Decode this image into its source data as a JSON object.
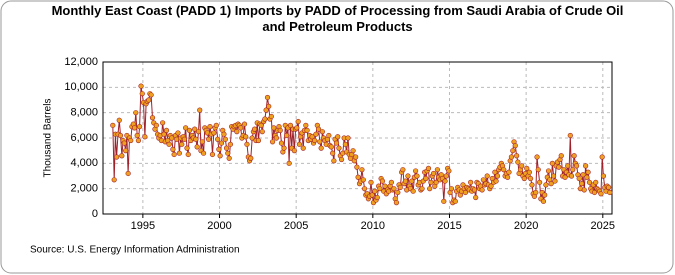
{
  "chart_data": {
    "type": "line",
    "title": "Monthly East Coast (PADD 1) Imports by PADD of Processing from Saudi Arabia of Crude Oil and Petroleum Products",
    "y_label": "Thousand Barrels",
    "source": "Source: U.S. Energy Information Administration",
    "line_color": "#a0202a",
    "marker_color": "#f0a020",
    "grid": true,
    "xlim": [
      1992.4,
      2025.6
    ],
    "xticks": [
      1995,
      2000,
      2005,
      2010,
      2015,
      2020,
      2025
    ],
    "ylim": [
      0,
      12000
    ],
    "yticks": [
      0,
      {
        "value": 2000,
        "label": "2,000"
      },
      {
        "value": 4000,
        "label": "4,000"
      },
      {
        "value": 6000,
        "label": "6,000"
      },
      {
        "value": 8000,
        "label": "8,000"
      },
      {
        "value": 10000,
        "label": "10,000"
      },
      {
        "value": 12000,
        "label": "12,000"
      }
    ],
    "x": [
      1993.04,
      1993.13,
      1993.21,
      1993.29,
      1993.38,
      1993.46,
      1993.54,
      1993.63,
      1993.71,
      1993.79,
      1993.88,
      1993.96,
      1994.04,
      1994.13,
      1994.21,
      1994.29,
      1994.38,
      1994.46,
      1994.54,
      1994.63,
      1994.71,
      1994.79,
      1994.88,
      1994.96,
      1995.04,
      1995.13,
      1995.21,
      1995.29,
      1995.38,
      1995.46,
      1995.54,
      1995.63,
      1995.71,
      1995.79,
      1995.88,
      1995.96,
      1996.04,
      1996.13,
      1996.21,
      1996.29,
      1996.38,
      1996.46,
      1996.54,
      1996.63,
      1996.71,
      1996.79,
      1996.88,
      1996.96,
      1997.04,
      1997.13,
      1997.21,
      1997.29,
      1997.38,
      1997.46,
      1997.54,
      1997.63,
      1997.71,
      1997.79,
      1997.88,
      1997.96,
      1998.04,
      1998.13,
      1998.21,
      1998.29,
      1998.38,
      1998.46,
      1998.54,
      1998.63,
      1998.71,
      1998.79,
      1998.88,
      1998.96,
      1999.04,
      1999.13,
      1999.21,
      1999.29,
      1999.38,
      1999.46,
      1999.54,
      1999.63,
      1999.71,
      1999.79,
      1999.88,
      1999.96,
      2000.04,
      2000.13,
      2000.21,
      2000.29,
      2000.38,
      2000.46,
      2000.54,
      2000.63,
      2000.71,
      2000.79,
      2000.88,
      2000.96,
      2001.04,
      2001.13,
      2001.21,
      2001.29,
      2001.38,
      2001.46,
      2001.54,
      2001.63,
      2001.71,
      2001.79,
      2001.88,
      2001.96,
      2002.04,
      2002.13,
      2002.21,
      2002.29,
      2002.38,
      2002.46,
      2002.54,
      2002.63,
      2002.71,
      2002.79,
      2002.88,
      2002.96,
      2003.04,
      2003.13,
      2003.21,
      2003.29,
      2003.38,
      2003.46,
      2003.54,
      2003.63,
      2003.71,
      2003.79,
      2003.88,
      2003.96,
      2004.04,
      2004.13,
      2004.21,
      2004.29,
      2004.38,
      2004.46,
      2004.54,
      2004.63,
      2004.71,
      2004.79,
      2004.88,
      2004.96,
      2005.04,
      2005.13,
      2005.21,
      2005.29,
      2005.38,
      2005.46,
      2005.54,
      2005.63,
      2005.71,
      2005.79,
      2005.88,
      2005.96,
      2006.04,
      2006.13,
      2006.21,
      2006.29,
      2006.38,
      2006.46,
      2006.54,
      2006.63,
      2006.71,
      2006.79,
      2006.88,
      2006.96,
      2007.04,
      2007.13,
      2007.21,
      2007.29,
      2007.38,
      2007.46,
      2007.54,
      2007.63,
      2007.71,
      2007.79,
      2007.88,
      2007.96,
      2008.04,
      2008.13,
      2008.21,
      2008.29,
      2008.38,
      2008.46,
      2008.54,
      2008.63,
      2008.71,
      2008.79,
      2008.88,
      2008.96,
      2009.04,
      2009.13,
      2009.21,
      2009.29,
      2009.38,
      2009.46,
      2009.54,
      2009.63,
      2009.71,
      2009.79,
      2009.88,
      2009.96,
      2010.04,
      2010.13,
      2010.21,
      2010.29,
      2010.38,
      2010.46,
      2010.54,
      2010.63,
      2010.71,
      2010.79,
      2010.88,
      2010.96,
      2011.04,
      2011.13,
      2011.21,
      2011.29,
      2011.38,
      2011.46,
      2011.54,
      2011.63,
      2011.71,
      2011.79,
      2011.88,
      2011.96,
      2012.04,
      2012.13,
      2012.21,
      2012.29,
      2012.38,
      2012.46,
      2012.54,
      2012.63,
      2012.71,
      2012.79,
      2012.88,
      2012.96,
      2013.04,
      2013.13,
      2013.21,
      2013.29,
      2013.38,
      2013.46,
      2013.54,
      2013.63,
      2013.71,
      2013.79,
      2013.88,
      2013.96,
      2014.04,
      2014.13,
      2014.21,
      2014.29,
      2014.38,
      2014.46,
      2014.54,
      2014.63,
      2014.71,
      2014.79,
      2014.88,
      2014.96,
      2015.04,
      2015.13,
      2015.21,
      2015.29,
      2015.38,
      2015.46,
      2015.54,
      2015.63,
      2015.71,
      2015.79,
      2015.88,
      2015.96,
      2016.04,
      2016.13,
      2016.21,
      2016.29,
      2016.38,
      2016.46,
      2016.54,
      2016.63,
      2016.71,
      2016.79,
      2016.88,
      2016.96,
      2017.04,
      2017.13,
      2017.21,
      2017.29,
      2017.38,
      2017.46,
      2017.54,
      2017.63,
      2017.71,
      2017.79,
      2017.88,
      2017.96,
      2018.04,
      2018.13,
      2018.21,
      2018.29,
      2018.38,
      2018.46,
      2018.54,
      2018.63,
      2018.71,
      2018.79,
      2018.88,
      2018.96,
      2019.04,
      2019.13,
      2019.21,
      2019.29,
      2019.38,
      2019.46,
      2019.54,
      2019.63,
      2019.71,
      2019.79,
      2019.88,
      2019.96,
      2020.04,
      2020.13,
      2020.21,
      2020.29,
      2020.38,
      2020.46,
      2020.54,
      2020.63,
      2020.71,
      2020.79,
      2020.88,
      2020.96,
      2021.04,
      2021.13,
      2021.21,
      2021.29,
      2021.38,
      2021.46,
      2021.54,
      2021.63,
      2021.71,
      2021.79,
      2021.88,
      2021.96,
      2022.04,
      2022.13,
      2022.21,
      2022.29,
      2022.38,
      2022.46,
      2022.54,
      2022.63,
      2022.71,
      2022.79,
      2022.88,
      2022.96,
      2023.04,
      2023.13,
      2023.21,
      2023.29,
      2023.38,
      2023.46,
      2023.54,
      2023.63,
      2023.71,
      2023.79,
      2023.88,
      2023.96,
      2024.04,
      2024.13,
      2024.21,
      2024.29,
      2024.38,
      2024.46,
      2024.54,
      2024.63,
      2024.71,
      2024.79,
      2024.88,
      2024.96,
      2025.04,
      2025.13,
      2025.21,
      2025.29,
      2025.38,
      2025.46
    ],
    "values": [
      7000,
      2700,
      6300,
      4500,
      6300,
      7400,
      6200,
      4600,
      5800,
      5600,
      5000,
      6200,
      3200,
      6000,
      5800,
      6900,
      7100,
      6800,
      8000,
      6200,
      5800,
      6900,
      10100,
      9500,
      8800,
      6100,
      8700,
      8900,
      9000,
      9500,
      9400,
      7600,
      7200,
      6700,
      7000,
      6300,
      6000,
      6200,
      5800,
      7200,
      6300,
      5700,
      6600,
      5800,
      5500,
      6200,
      6000,
      5100,
      4700,
      6200,
      5900,
      6400,
      4800,
      6000,
      5500,
      6100,
      5900,
      6800,
      5200,
      4700,
      6600,
      5800,
      6200,
      6000,
      6700,
      5900,
      5300,
      6500,
      8200,
      5000,
      5700,
      4800,
      6800,
      6600,
      6400,
      5900,
      6900,
      6300,
      4700,
      6400,
      6800,
      7000,
      5900,
      5100,
      4600,
      5600,
      6600,
      6300,
      5900,
      5200,
      4800,
      4400,
      5500,
      6900,
      6700,
      6900,
      7000,
      6500,
      7100,
      7000,
      6800,
      6000,
      6200,
      7100,
      6100,
      5500,
      4500,
      4200,
      4400,
      6000,
      6500,
      6700,
      5800,
      7200,
      5800,
      7100,
      7000,
      6500,
      7300,
      7500,
      8200,
      9200,
      8500,
      7500,
      7700,
      5700,
      6800,
      6200,
      6000,
      6600,
      6900,
      6600,
      5600,
      4900,
      5200,
      7000,
      6200,
      6800,
      4000,
      7000,
      5200,
      6700,
      5000,
      6700,
      6800,
      7300,
      5500,
      6100,
      6400,
      5200,
      6600,
      7000,
      6600,
      5800,
      6200,
      5900,
      6100,
      5600,
      5800,
      6300,
      7000,
      6700,
      5700,
      5200,
      6500,
      6000,
      5800,
      5500,
      5900,
      6200,
      5400,
      5300,
      4800,
      4200,
      5900,
      5600,
      6100,
      5200,
      4600,
      4300,
      4800,
      6000,
      5500,
      4900,
      6000,
      4700,
      4400,
      4700,
      5000,
      4200,
      4500,
      3700,
      2900,
      2400,
      2600,
      3500,
      2700,
      2000,
      1500,
      1600,
      1200,
      1400,
      2500,
      1500,
      900,
      1800,
      1100,
      1300,
      2200,
      2000,
      2800,
      2600,
      1800,
      2200,
      1600,
      1900,
      1800,
      2200,
      2500,
      1900,
      2000,
      1200,
      900,
      1700,
      2300,
      2100,
      3300,
      3500,
      2400,
      2600,
      1900,
      3000,
      2200,
      2000,
      2600,
      1800,
      2900,
      3400,
      3000,
      2300,
      2500,
      1900,
      2000,
      2600,
      3300,
      2800,
      3400,
      3600,
      2000,
      2500,
      3000,
      3200,
      2200,
      2500,
      3500,
      2900,
      2700,
      3100,
      2800,
      1000,
      2600,
      3000,
      3600,
      3400,
      1700,
      2000,
      900,
      1100,
      1000,
      1800,
      2100,
      1900,
      1500,
      1800,
      2300,
      2000,
      1700,
      2100,
      2000,
      1900,
      2500,
      1800,
      2000,
      1900,
      1300,
      2500,
      2400,
      2000,
      2200,
      1900,
      2700,
      2300,
      2400,
      3000,
      2300,
      2000,
      2200,
      2800,
      2500,
      3300,
      2600,
      3000,
      3500,
      3700,
      4000,
      3800,
      3500,
      3000,
      3200,
      2900,
      3300,
      4200,
      4500,
      5000,
      5700,
      5400,
      4600,
      4100,
      3200,
      3500,
      3800,
      3000,
      2800,
      3200,
      3600,
      3000,
      3300,
      2800,
      2300,
      1600,
      1400,
      1700,
      4500,
      3500,
      2500,
      1200,
      1700,
      1000,
      1500,
      2300,
      2900,
      3400,
      2700,
      2400,
      4000,
      3000,
      2600,
      3800,
      4100,
      3700,
      4300,
      4600,
      3000,
      3500,
      2900,
      3300,
      3800,
      3100,
      6200,
      3000,
      3500,
      4600,
      4000,
      3800,
      3100,
      2800,
      2000,
      2400,
      3100,
      1900,
      3800,
      2900,
      3300,
      2500,
      2000,
      1800,
      2300,
      1700,
      2500,
      2000,
      1900,
      1800,
      1600,
      4500,
      3000,
      2100,
      1800,
      2200,
      2100,
      1700
    ]
  }
}
